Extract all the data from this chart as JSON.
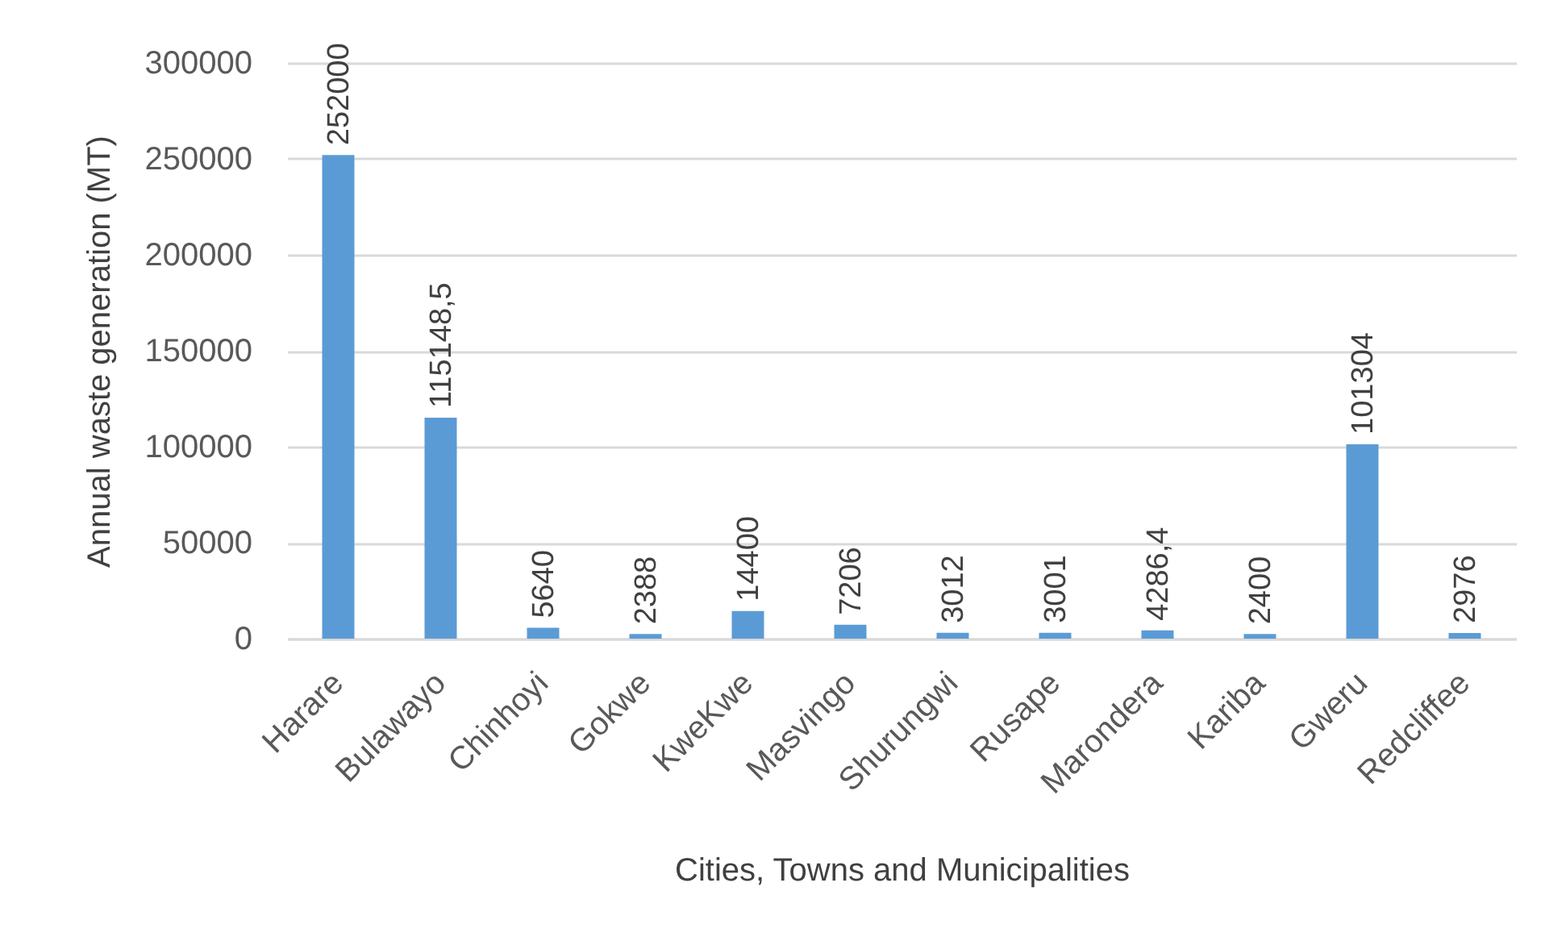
{
  "chart_data": {
    "type": "bar",
    "xlabel": "Cities, Towns and Municipalities",
    "ylabel": "Annual waste generation (MT)",
    "categories": [
      "Harare",
      "Bulawayo",
      "Chinhoyi",
      "Gokwe",
      "KweKwe",
      "Masvingo",
      "Shurungwi",
      "Rusape",
      "Marondera",
      "Kariba",
      "Gweru",
      "Redcliffee"
    ],
    "values": [
      252000,
      115148.5,
      5640,
      2388,
      14400,
      7206,
      3012,
      3001,
      4286.4,
      2400,
      101304,
      2976
    ],
    "value_labels": [
      "252000",
      "115148,5",
      "5640",
      "2388",
      "14400",
      "7206",
      "3012",
      "3001",
      "4286,4",
      "2400",
      "101304",
      "2976"
    ],
    "color": "#5b9bd5",
    "ylim": [
      0,
      300000
    ],
    "yticks": [
      0,
      50000,
      100000,
      150000,
      200000,
      250000,
      300000
    ],
    "grid": "y"
  }
}
